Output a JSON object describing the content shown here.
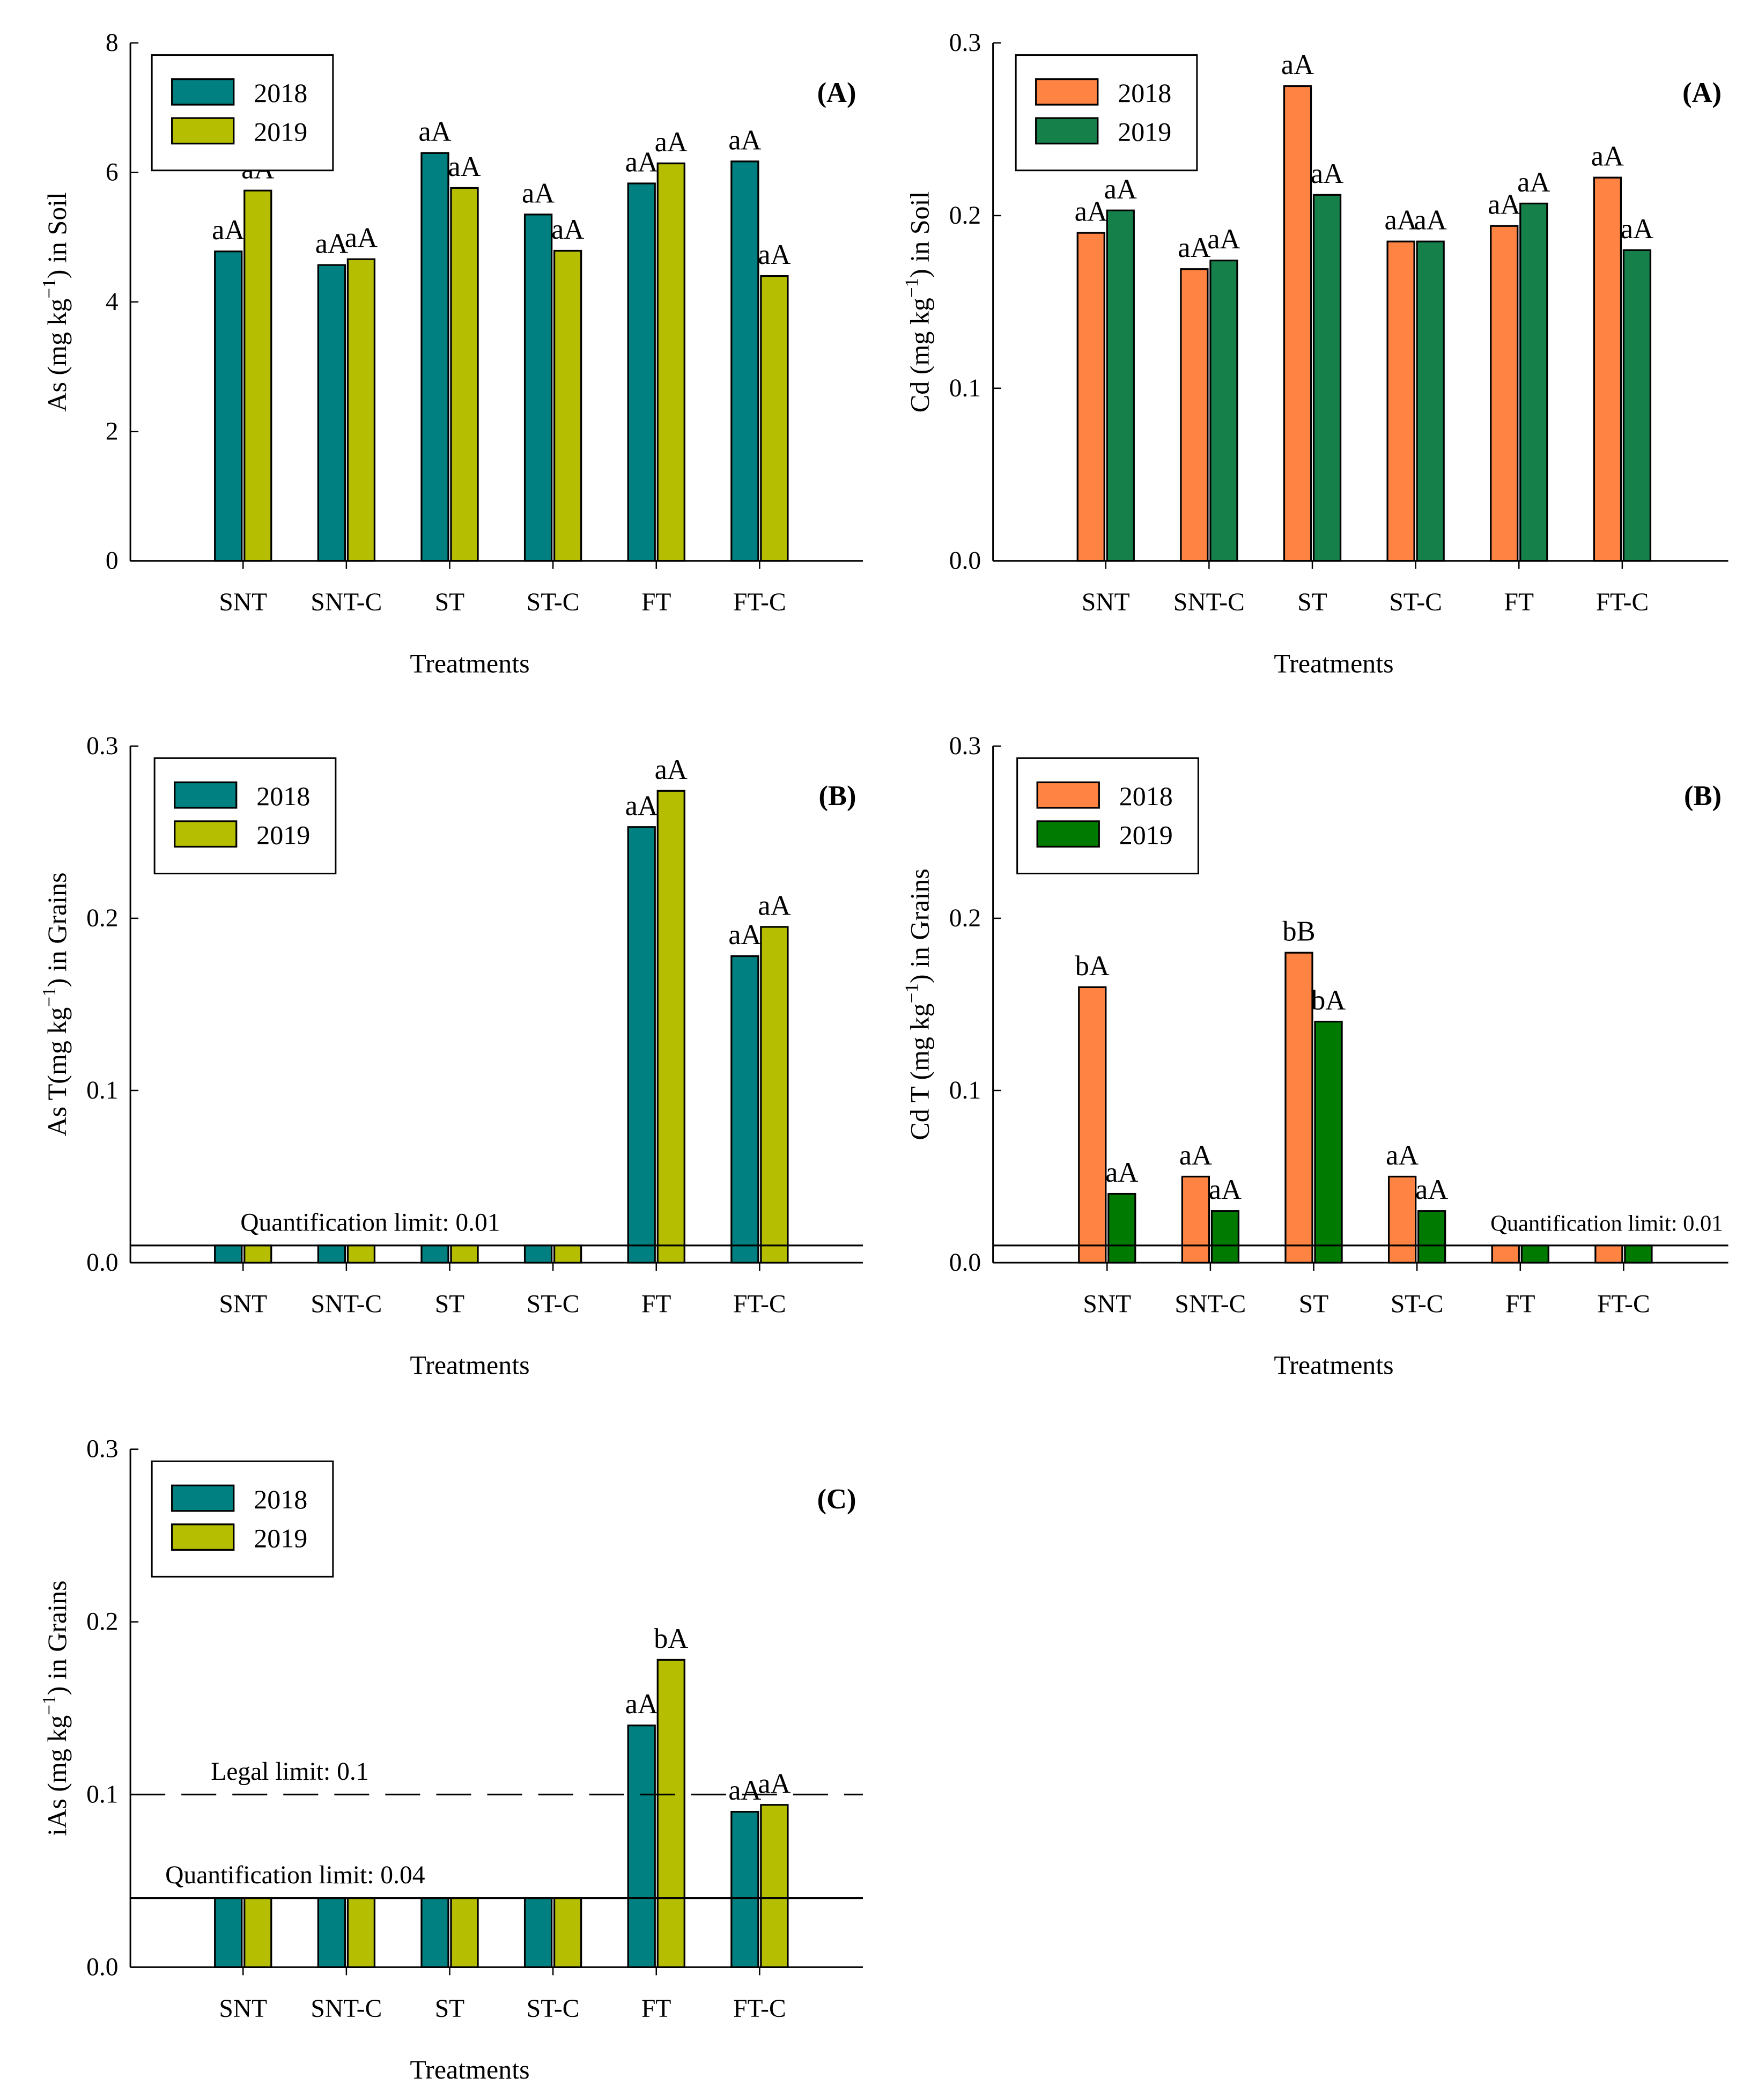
{
  "chart_data": [
    {
      "type": "bar",
      "panel_label": "(A)",
      "ylabel_main": "As (mg kg",
      "ylabel_sup": "−1",
      "ylabel_tail": ") in Soil",
      "xlabel": "Treatments",
      "categories": [
        "SNT",
        "SNT-C",
        "ST",
        "ST-C",
        "FT",
        "FT-C"
      ],
      "ylim": [
        0,
        8
      ],
      "yticks": [
        0,
        2,
        4,
        6,
        8
      ],
      "ytick_labels": [
        "0",
        "2",
        "4",
        "6",
        "8"
      ],
      "legend_position": "top-left",
      "series": [
        {
          "name": "2018",
          "color": "#008080",
          "values": [
            4.78,
            4.57,
            6.3,
            5.35,
            5.83,
            6.17
          ],
          "letters": [
            "aA",
            "aA",
            "aA",
            "aA",
            "aA",
            "aA"
          ]
        },
        {
          "name": "2019",
          "color": "#B5BE00",
          "values": [
            5.72,
            4.66,
            5.76,
            4.79,
            6.14,
            4.4
          ],
          "letters": [
            "aA",
            "aA",
            "aA",
            "aA",
            "aA",
            "aA"
          ]
        }
      ],
      "reference_lines": []
    },
    {
      "type": "bar",
      "panel_label": "(A)",
      "ylabel_main": "Cd (mg kg",
      "ylabel_sup": "−1",
      "ylabel_tail": ") in Soil",
      "xlabel": "Treatments",
      "categories": [
        "SNT",
        "SNT-C",
        "ST",
        "ST-C",
        "FT",
        "FT-C"
      ],
      "ylim": [
        0,
        0.3
      ],
      "yticks": [
        0,
        0.1,
        0.2,
        0.3
      ],
      "ytick_labels": [
        "0.0",
        "0.1",
        "0.2",
        "0.3"
      ],
      "legend_position": "top-left",
      "series": [
        {
          "name": "2018",
          "color": "#FF8444",
          "values": [
            0.19,
            0.169,
            0.275,
            0.185,
            0.194,
            0.222
          ],
          "letters": [
            "aA",
            "aA",
            "aA",
            "aA",
            "aA",
            "aA"
          ]
        },
        {
          "name": "2019",
          "color": "#16804A",
          "values": [
            0.203,
            0.174,
            0.212,
            0.185,
            0.207,
            0.18
          ],
          "letters": [
            "aA",
            "aA",
            "aA",
            "aA",
            "aA",
            "aA"
          ]
        }
      ],
      "reference_lines": []
    },
    {
      "type": "bar",
      "panel_label": "(B)",
      "ylabel_main": "As T(mg kg",
      "ylabel_sup": "−1",
      "ylabel_tail": ") in Grains",
      "xlabel": "Treatments",
      "categories": [
        "SNT",
        "SNT-C",
        "ST",
        "ST-C",
        "FT",
        "FT-C"
      ],
      "ylim": [
        0,
        0.3
      ],
      "yticks": [
        0,
        0.1,
        0.2,
        0.3
      ],
      "ytick_labels": [
        "0.0",
        "0.1",
        "0.2",
        "0.3"
      ],
      "legend_position": "top-left",
      "series": [
        {
          "name": "2018",
          "color": "#008080",
          "values": [
            0.01,
            0.01,
            0.01,
            0.01,
            0.253,
            0.178
          ],
          "letters": [
            "",
            "",
            "",
            "",
            "aA",
            "aA"
          ]
        },
        {
          "name": "2019",
          "color": "#B5BE00",
          "values": [
            0.01,
            0.01,
            0.01,
            0.01,
            0.274,
            0.195
          ],
          "letters": [
            "",
            "",
            "",
            "",
            "aA",
            "aA"
          ]
        }
      ],
      "reference_lines": [
        {
          "value": 0.01,
          "style": "solid",
          "label": "Quantification limit: 0.01",
          "label_pos": "left"
        }
      ]
    },
    {
      "type": "bar",
      "panel_label": "(B)",
      "ylabel_main": "Cd T (mg kg",
      "ylabel_sup": "−1",
      "ylabel_tail": ") in Grains",
      "xlabel": "Treatments",
      "categories": [
        "SNT",
        "SNT-C",
        "ST",
        "ST-C",
        "FT",
        "FT-C"
      ],
      "ylim": [
        0,
        0.3
      ],
      "yticks": [
        0,
        0.1,
        0.2,
        0.3
      ],
      "ytick_labels": [
        "0.0",
        "0.1",
        "0.2",
        "0.3"
      ],
      "legend_position": "top-left",
      "series": [
        {
          "name": "2018",
          "color": "#FF8444",
          "values": [
            0.16,
            0.05,
            0.18,
            0.05,
            0.01,
            0.01
          ],
          "letters": [
            "bA",
            "aA",
            "bB",
            "aA",
            "",
            ""
          ]
        },
        {
          "name": "2019",
          "color": "#007A00",
          "values": [
            0.04,
            0.03,
            0.14,
            0.03,
            0.01,
            0.01
          ],
          "letters": [
            "aA",
            "aA",
            "bA",
            "aA",
            "",
            ""
          ]
        }
      ],
      "reference_lines": [
        {
          "value": 0.01,
          "style": "solid",
          "label": "Quantification limit: 0.01",
          "label_pos": "right"
        }
      ]
    },
    {
      "type": "bar",
      "panel_label": "(C)",
      "ylabel_main": "iAs (mg kg",
      "ylabel_sup": "−1",
      "ylabel_tail": ") in Grains",
      "xlabel": "Treatments",
      "categories": [
        "SNT",
        "SNT-C",
        "ST",
        "ST-C",
        "FT",
        "FT-C"
      ],
      "ylim": [
        0,
        0.3
      ],
      "yticks": [
        0,
        0.1,
        0.2,
        0.3
      ],
      "ytick_labels": [
        "0.0",
        "0.1",
        "0.2",
        "0.3"
      ],
      "legend_position": "top-left",
      "series": [
        {
          "name": "2018",
          "color": "#008080",
          "values": [
            0.04,
            0.04,
            0.04,
            0.04,
            0.14,
            0.09
          ],
          "letters": [
            "",
            "",
            "",
            "",
            "aA",
            "aA"
          ]
        },
        {
          "name": "2019",
          "color": "#B5BE00",
          "values": [
            0.04,
            0.04,
            0.04,
            0.04,
            0.178,
            0.094
          ],
          "letters": [
            "",
            "",
            "",
            "",
            "bA",
            "aA"
          ]
        }
      ],
      "reference_lines": [
        {
          "value": 0.1,
          "style": "dashed",
          "label": "Legal limit: 0.1",
          "label_pos": "left"
        },
        {
          "value": 0.04,
          "style": "solid",
          "label": "Quantification limit: 0.04",
          "label_pos": "far-left"
        }
      ]
    }
  ]
}
